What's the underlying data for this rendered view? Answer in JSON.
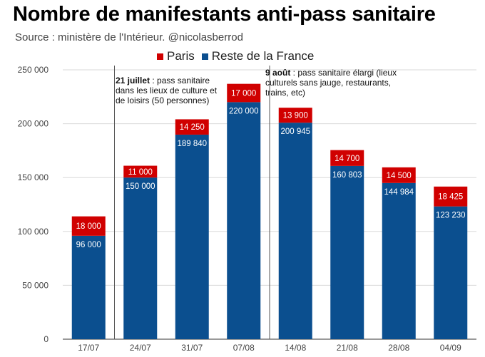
{
  "chart_data": {
    "type": "bar",
    "stacked": true,
    "title": "Nombre de manifestants anti-pass sanitaire",
    "subtitle": "Source : ministère de l'Intérieur. @nicolasberrod",
    "categories": [
      "17/07",
      "24/07",
      "31/07",
      "07/08",
      "14/08",
      "21/08",
      "28/08",
      "04/09"
    ],
    "series": [
      {
        "name": "Reste de la France",
        "color": "#0b4f8f",
        "values": [
          96000,
          150000,
          189840,
          220000,
          200945,
          160803,
          144984,
          123230
        ],
        "labels": [
          "96 000",
          "150 000",
          "189 840",
          "220 000",
          "200 945",
          "160 803",
          "144 984",
          "123 230"
        ]
      },
      {
        "name": "Paris",
        "color": "#d00000",
        "values": [
          18000,
          11000,
          14250,
          17000,
          13900,
          14700,
          14500,
          18425
        ],
        "labels": [
          "18 000",
          "11 000",
          "14 250",
          "17 000",
          "13 900",
          "14 700",
          "14 500",
          "18 425"
        ]
      }
    ],
    "ylim": [
      0,
      250000
    ],
    "yticks": [
      0,
      50000,
      100000,
      150000,
      200000,
      250000
    ],
    "ytick_labels": [
      "0",
      "50 000",
      "100 000",
      "150 000",
      "200 000",
      "250 000"
    ],
    "grid": true,
    "legend_position": "top",
    "legend_order": [
      "Paris",
      "Reste de la France"
    ],
    "annotations": [
      {
        "after_category": "17/07",
        "bold": "21 juillet",
        "text": " : pass sanitaire dans les lieux de culture et de loisirs (50 personnes)"
      },
      {
        "after_category": "07/08",
        "bold": "9 août",
        "text": " : pass sanitaire élargi (lieux culturels sans jauge, restaurants, trains, etc)"
      }
    ]
  }
}
